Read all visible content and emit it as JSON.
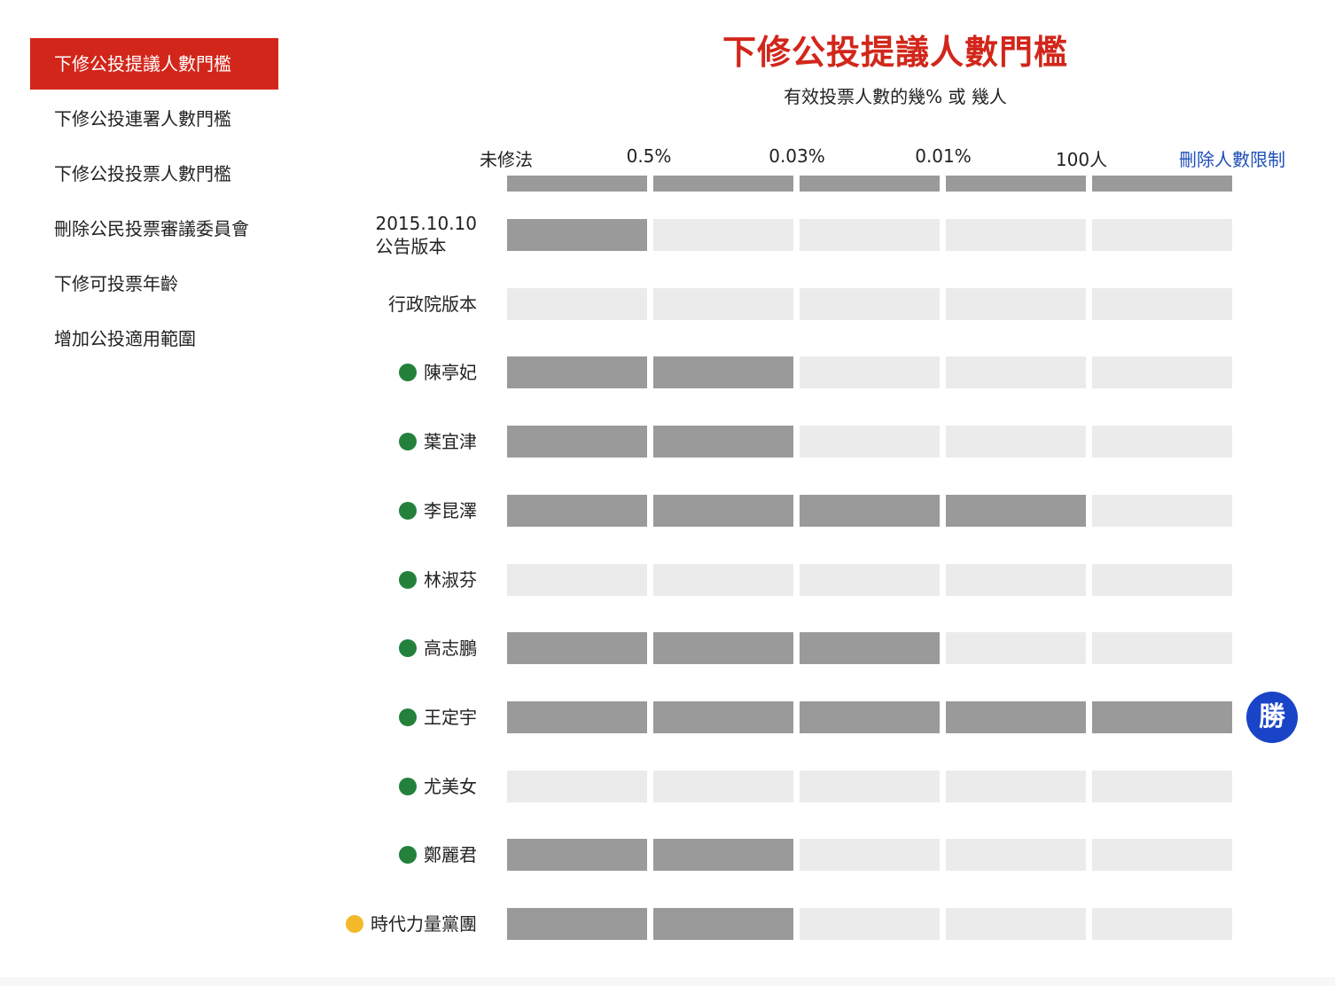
{
  "sidebar": {
    "items": [
      {
        "label": "下修公投提議人數門檻",
        "active": true
      },
      {
        "label": "下修公投連署人數門檻",
        "active": false
      },
      {
        "label": "下修公投投票人數門檻",
        "active": false
      },
      {
        "label": "刪除公民投票審議委員會",
        "active": false
      },
      {
        "label": "下修可投票年齡",
        "active": false
      },
      {
        "label": "增加公投適用範圍",
        "active": false
      }
    ]
  },
  "header": {
    "title": "下修公投提議人數門檻",
    "subtitle": "有效投票人數的幾% 或 幾人"
  },
  "colors": {
    "accent": "#d2261a",
    "link": "#1f4fb8",
    "filled": "#9a9a9a",
    "empty": "#ebebeb",
    "dpp_green": "#23813c",
    "npp_yellow": "#f4b92b",
    "badge_blue": "#1a44c8"
  },
  "chart_data": {
    "type": "table",
    "title": "下修公投提議人數門檻",
    "subtitle": "有效投票人數的幾% 或 幾人",
    "columns": [
      "未修法",
      "0.5%",
      "0.03%",
      "0.01%",
      "100人",
      "刪除人數限制"
    ],
    "rows": [
      {
        "label": "2015.10.10\n公告版本",
        "label_lines": [
          "2015.10.10",
          "公告版本"
        ],
        "party": null,
        "level": 1,
        "badge": null
      },
      {
        "label": "行政院版本",
        "label_lines": [
          "行政院版本"
        ],
        "party": null,
        "level": 0,
        "badge": null
      },
      {
        "label": "陳亭妃",
        "label_lines": [
          "陳亭妃"
        ],
        "party": "green",
        "level": 2,
        "badge": null
      },
      {
        "label": "葉宜津",
        "label_lines": [
          "葉宜津"
        ],
        "party": "green",
        "level": 2,
        "badge": null
      },
      {
        "label": "李昆澤",
        "label_lines": [
          "李昆澤"
        ],
        "party": "green",
        "level": 4,
        "badge": null
      },
      {
        "label": "林淑芬",
        "label_lines": [
          "林淑芬"
        ],
        "party": "green",
        "level": 0,
        "badge": null
      },
      {
        "label": "高志鵬",
        "label_lines": [
          "高志鵬"
        ],
        "party": "green",
        "level": 3,
        "badge": null
      },
      {
        "label": "王定宇",
        "label_lines": [
          "王定宇"
        ],
        "party": "green",
        "level": 5,
        "badge": "勝"
      },
      {
        "label": "尤美女",
        "label_lines": [
          "尤美女"
        ],
        "party": "green",
        "level": 0,
        "badge": null
      },
      {
        "label": "鄭麗君",
        "label_lines": [
          "鄭麗君"
        ],
        "party": "green",
        "level": 2,
        "badge": null
      },
      {
        "label": "時代力量黨團",
        "label_lines": [
          "時代力量黨團"
        ],
        "party": "yellow",
        "level": 2,
        "badge": null
      }
    ]
  }
}
